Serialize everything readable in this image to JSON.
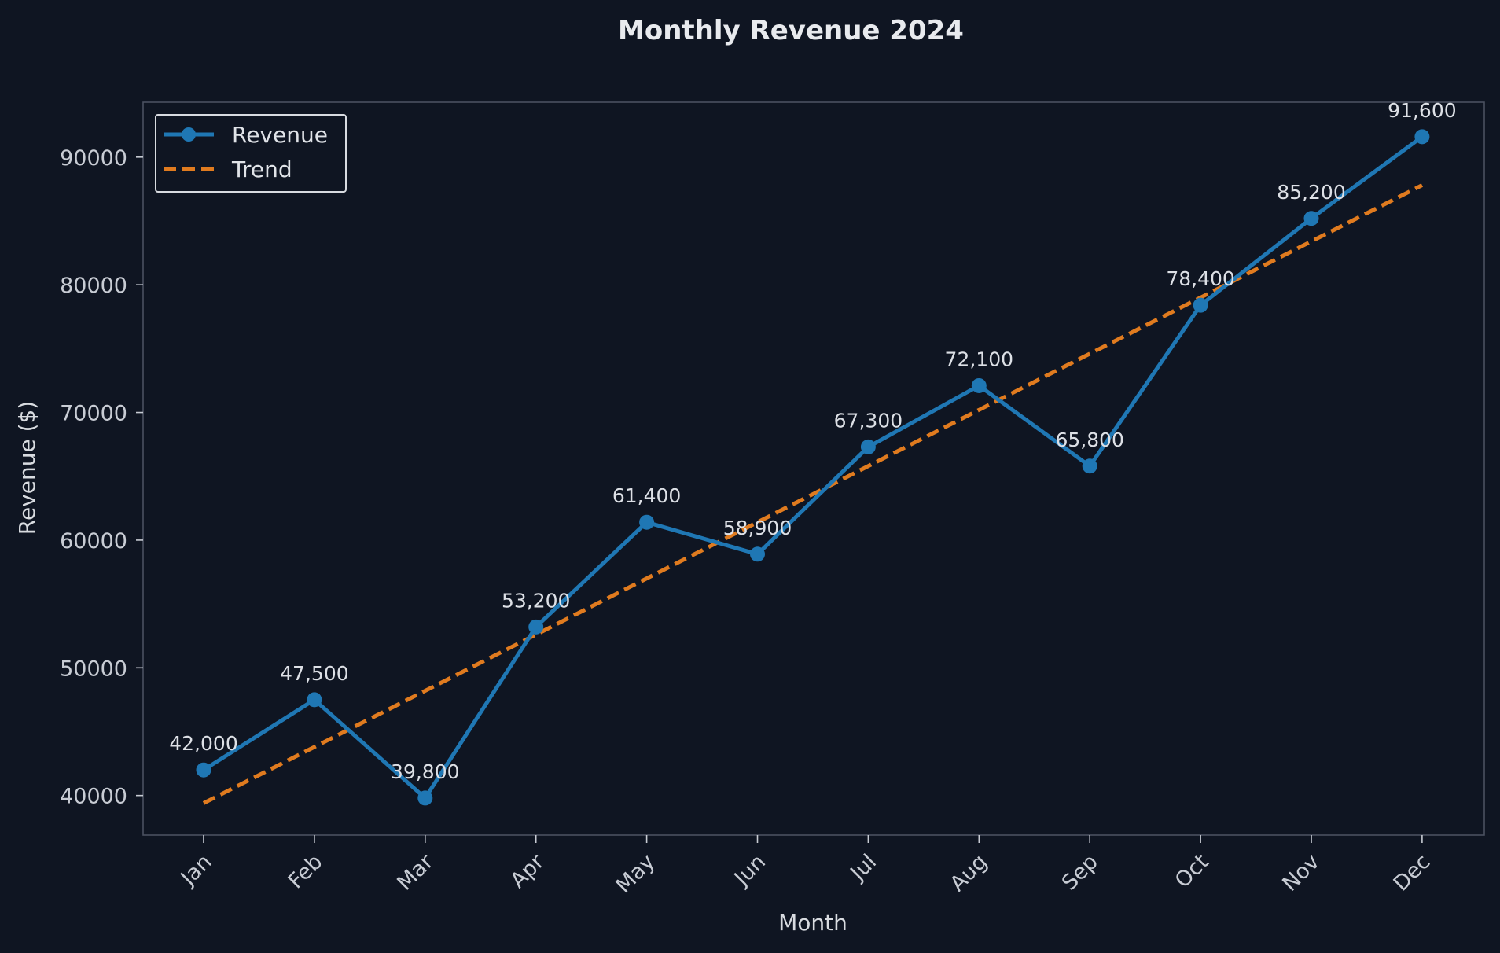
{
  "chart_data": {
    "type": "line",
    "title": "Monthly Revenue 2024",
    "xlabel": "Month",
    "ylabel": "Revenue ($)",
    "categories": [
      "Jan",
      "Feb",
      "Mar",
      "Apr",
      "May",
      "Jun",
      "Jul",
      "Aug",
      "Sep",
      "Oct",
      "Nov",
      "Dec"
    ],
    "ylim": [
      36900,
      94300
    ],
    "yticks": [
      40000,
      50000,
      60000,
      70000,
      80000,
      90000
    ],
    "series": [
      {
        "name": "Revenue",
        "style": "solid-line-with-markers",
        "color": "#1f77b4",
        "values": [
          42000,
          47500,
          39800,
          53200,
          61400,
          58900,
          67300,
          72100,
          65800,
          78400,
          85200,
          91600
        ],
        "labels": [
          "42,000",
          "47,500",
          "39,800",
          "53,200",
          "61,400",
          "58,900",
          "67,300",
          "72,100",
          "65,800",
          "78,400",
          "85,200",
          "91,600"
        ]
      },
      {
        "name": "Trend",
        "style": "dashed-line",
        "color": "#e07b1f",
        "values": [
          39400,
          43800,
          48200,
          52600,
          57000,
          61400,
          65800,
          70200,
          74600,
          79000,
          83400,
          87800
        ]
      }
    ],
    "legend_position": "top-left",
    "grid": false
  },
  "theme": {
    "background": "#0f1522",
    "axis_color": "#4a5060",
    "text_color": "#c8ccd4",
    "title_color": "#e8eaee",
    "legend_border": "#d8dbe0"
  }
}
